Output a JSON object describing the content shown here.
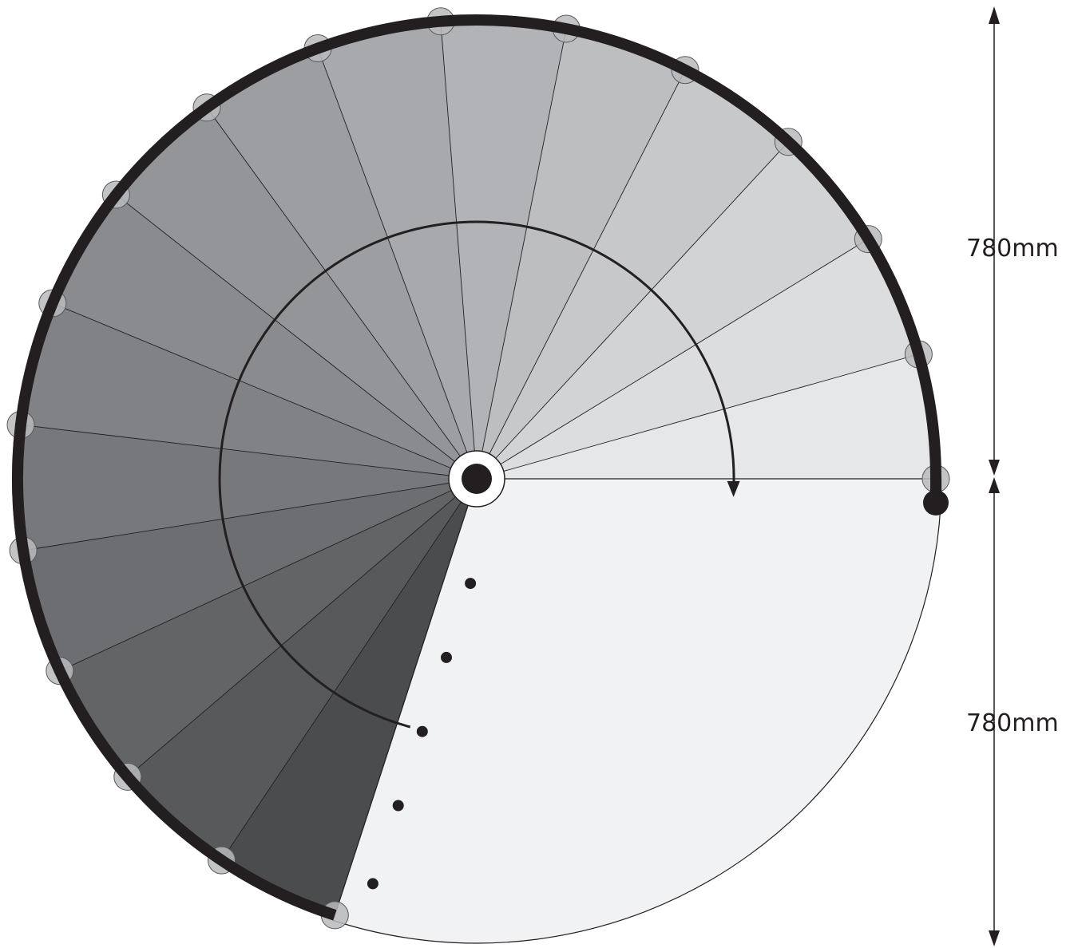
{
  "dimensions": {
    "upper": "780mm",
    "lower": "780mm"
  },
  "treads": {
    "count": 16,
    "palette": [
      "#e6e7e8",
      "#dcddde",
      "#d1d3d4",
      "#c7c8ca",
      "#bcbec0",
      "#b1b3b6",
      "#a7a9ac",
      "#9c9ea1",
      "#939598",
      "#898b8e",
      "#808285",
      "#77787b",
      "#6d6e71",
      "#636466",
      "#58595b",
      "#4b4c4e"
    ]
  },
  "landing": {
    "color": "#f1f2f4"
  },
  "colors": {
    "rail": "#231f20",
    "outline": "#231f20"
  }
}
